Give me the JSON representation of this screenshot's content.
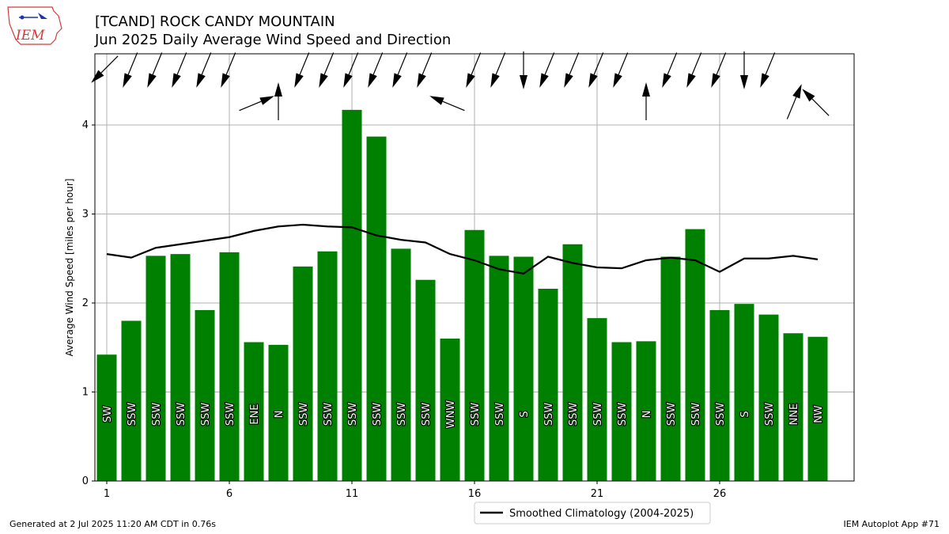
{
  "header": {
    "title_line1": "[TCAND] ROCK CANDY MOUNTAIN",
    "title_line2": "Jun 2025 Daily Average Wind Speed and Direction",
    "logo_text": "IEM"
  },
  "footer": {
    "left": "Generated at 2 Jul 2025 11:20 AM CDT in 0.76s",
    "right": "IEM Autoplot App #71"
  },
  "colors": {
    "bar": "#008000",
    "line": "#000000",
    "grid": "#b0b0b0",
    "logo_red": "#d43a3a",
    "logo_blue": "#2233aa"
  },
  "chart_data": {
    "type": "bar",
    "title": "Jun 2025 Daily Average Wind Speed and Direction",
    "ylabel": "Average Wind Speed [miles per hour]",
    "xlabel": "",
    "ylim": [
      0,
      4.8
    ],
    "yticks": [
      0,
      1,
      2,
      3,
      4
    ],
    "xticks": [
      1,
      6,
      11,
      16,
      21,
      26
    ],
    "grid": true,
    "legend_position": "bottom-center",
    "days": [
      1,
      2,
      3,
      4,
      5,
      6,
      7,
      8,
      9,
      10,
      11,
      12,
      13,
      14,
      15,
      16,
      17,
      18,
      19,
      20,
      21,
      22,
      23,
      24,
      25,
      26,
      27,
      28,
      29,
      30
    ],
    "values": [
      1.42,
      1.8,
      2.53,
      2.55,
      1.92,
      2.57,
      1.56,
      1.53,
      2.41,
      2.58,
      4.17,
      3.87,
      2.61,
      2.26,
      1.6,
      2.82,
      2.53,
      2.52,
      2.16,
      2.66,
      1.83,
      1.56,
      1.57,
      2.52,
      2.83,
      1.92,
      1.99,
      1.87,
      1.66,
      1.62
    ],
    "directions": [
      "SW",
      "SSW",
      "SSW",
      "SSW",
      "SSW",
      "SSW",
      "ENE",
      "N",
      "SSW",
      "SSW",
      "SSW",
      "SSW",
      "SSW",
      "SSW",
      "WNW",
      "SSW",
      "SSW",
      "S",
      "SSW",
      "SSW",
      "SSW",
      "SSW",
      "N",
      "SSW",
      "SSW",
      "SSW",
      "S",
      "SSW",
      "NNE",
      "NW"
    ],
    "series": [
      {
        "name": "Smoothed Climatology (2004-2025)",
        "values": [
          2.55,
          2.51,
          2.62,
          2.66,
          2.7,
          2.74,
          2.81,
          2.86,
          2.88,
          2.86,
          2.85,
          2.76,
          2.71,
          2.68,
          2.55,
          2.48,
          2.38,
          2.33,
          2.52,
          2.45,
          2.4,
          2.39,
          2.48,
          2.51,
          2.48,
          2.35,
          2.5,
          2.5,
          2.53,
          2.49
        ]
      }
    ]
  }
}
